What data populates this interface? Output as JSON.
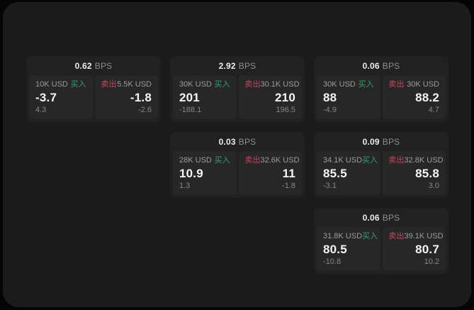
{
  "window": {
    "bps_unit": "BPS"
  },
  "colors": {
    "outer_background": "#050505",
    "window_background": "#1b1b1b",
    "card_background": "#212121",
    "panel_background": "#272727",
    "buy_green": "#35a06a",
    "sell_red": "#c8465f",
    "primary_text": "#f5f5f5",
    "muted_text": "#8f8f8f"
  },
  "cards": [
    {
      "bps": "0.62",
      "bps_unit": "BPS",
      "col": 1,
      "row": 1,
      "buy": {
        "size": "10K USD",
        "side_label": "买入",
        "price": "-3.7",
        "delta": "4.3"
      },
      "sell": {
        "side_label": "卖出",
        "size": "5.5K USD",
        "price": "-1.8",
        "delta": "-2.6"
      }
    },
    {
      "bps": "2.92",
      "bps_unit": "BPS",
      "col": 2,
      "row": 1,
      "buy": {
        "size": "30K USD",
        "side_label": "买入",
        "price": "201",
        "delta": "-188.1"
      },
      "sell": {
        "side_label": "卖出",
        "size": "30.1K USD",
        "price": "210",
        "delta": "196.5"
      }
    },
    {
      "bps": "0.06",
      "bps_unit": "BPS",
      "col": 3,
      "row": 1,
      "buy": {
        "size": "30K USD",
        "side_label": "买入",
        "price": "88",
        "delta": "-4.9"
      },
      "sell": {
        "side_label": "卖出",
        "size": "30K USD",
        "price": "88.2",
        "delta": "4.7"
      }
    },
    {
      "bps": "0.03",
      "bps_unit": "BPS",
      "col": 2,
      "row": 2,
      "buy": {
        "size": "28K USD",
        "side_label": "买入",
        "price": "10.9",
        "delta": "1.3"
      },
      "sell": {
        "side_label": "卖出",
        "size": "32.6K USD",
        "price": "11",
        "delta": "-1.8"
      }
    },
    {
      "bps": "0.09",
      "bps_unit": "BPS",
      "col": 3,
      "row": 2,
      "buy": {
        "size": "34.1K USD",
        "side_label": "买入",
        "price": "85.5",
        "delta": "-3.1"
      },
      "sell": {
        "side_label": "卖出",
        "size": "32.8K USD",
        "price": "85.8",
        "delta": "3.0"
      }
    },
    {
      "bps": "0.06",
      "bps_unit": "BPS",
      "col": 3,
      "row": 3,
      "buy": {
        "size": "31.8K USD",
        "side_label": "买入",
        "price": "80.5",
        "delta": "-10.8"
      },
      "sell": {
        "side_label": "卖出",
        "size": "39.1K USD",
        "price": "80.7",
        "delta": "10.2"
      }
    }
  ]
}
